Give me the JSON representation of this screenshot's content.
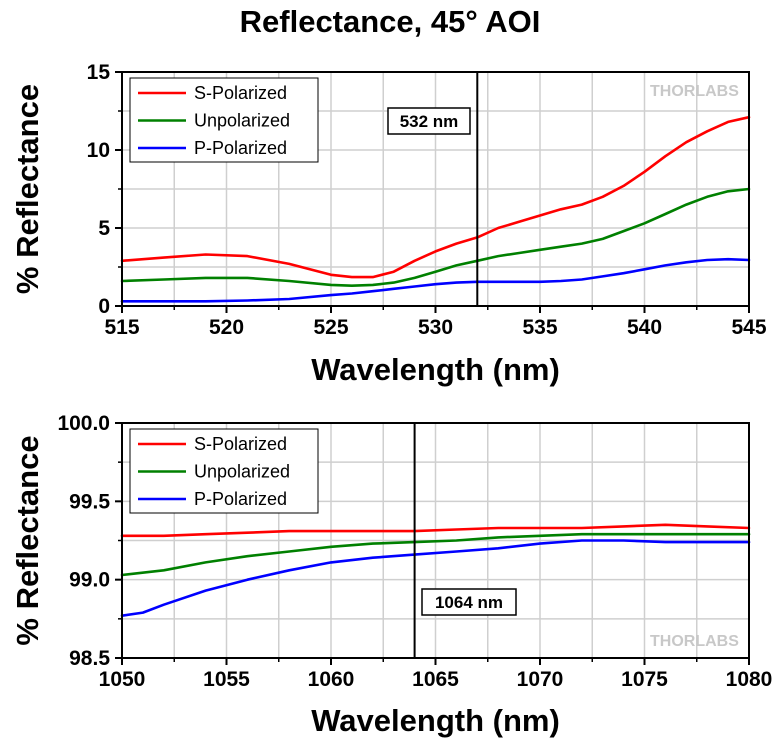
{
  "title": "Reflectance, 45° AOI",
  "watermark": "THORLABS",
  "chart_data": [
    {
      "type": "line",
      "xlabel": "Wavelength (nm)",
      "ylabel": "% Reflectance",
      "xlim": [
        515,
        545
      ],
      "ylim": [
        0,
        15
      ],
      "xticks": [
        515,
        520,
        525,
        530,
        535,
        540,
        545
      ],
      "yticks": [
        0,
        5,
        10,
        15
      ],
      "ytick_labels": [
        "0",
        "5",
        "10",
        "15"
      ],
      "grid": true,
      "legend_position": "top-left",
      "marker_line": {
        "x": 532,
        "label": "532 nm"
      },
      "series": [
        {
          "name": "S-Polarized",
          "color": "#ff0000",
          "x": [
            515,
            517,
            519,
            521,
            523,
            525,
            526,
            527,
            528,
            529,
            530,
            531,
            532,
            533,
            534,
            535,
            536,
            537,
            538,
            539,
            540,
            541,
            542,
            543,
            544,
            545
          ],
          "y": [
            2.9,
            3.1,
            3.3,
            3.2,
            2.7,
            2.0,
            1.85,
            1.85,
            2.2,
            2.9,
            3.5,
            4.0,
            4.4,
            5.0,
            5.4,
            5.8,
            6.2,
            6.5,
            7.0,
            7.7,
            8.6,
            9.6,
            10.5,
            11.2,
            11.8,
            12.1
          ]
        },
        {
          "name": "Unpolarized",
          "color": "#008000",
          "x": [
            515,
            517,
            519,
            521,
            523,
            525,
            526,
            527,
            528,
            529,
            530,
            531,
            532,
            533,
            534,
            535,
            536,
            537,
            538,
            539,
            540,
            541,
            542,
            543,
            544,
            545
          ],
          "y": [
            1.6,
            1.7,
            1.8,
            1.8,
            1.6,
            1.35,
            1.3,
            1.35,
            1.5,
            1.8,
            2.2,
            2.6,
            2.9,
            3.2,
            3.4,
            3.6,
            3.8,
            4.0,
            4.3,
            4.8,
            5.3,
            5.9,
            6.5,
            7.0,
            7.35,
            7.5
          ]
        },
        {
          "name": "P-Polarized",
          "color": "#0000ff",
          "x": [
            515,
            517,
            519,
            521,
            523,
            525,
            526,
            527,
            528,
            529,
            530,
            531,
            532,
            533,
            534,
            535,
            536,
            537,
            538,
            539,
            540,
            541,
            542,
            543,
            544,
            545
          ],
          "y": [
            0.3,
            0.3,
            0.3,
            0.35,
            0.45,
            0.7,
            0.8,
            0.95,
            1.1,
            1.25,
            1.4,
            1.5,
            1.55,
            1.55,
            1.55,
            1.55,
            1.6,
            1.7,
            1.9,
            2.1,
            2.35,
            2.6,
            2.8,
            2.95,
            3.0,
            2.95
          ]
        }
      ]
    },
    {
      "type": "line",
      "xlabel": "Wavelength (nm)",
      "ylabel": "% Reflectance",
      "xlim": [
        1050,
        1080
      ],
      "ylim": [
        98.5,
        100.0
      ],
      "xticks": [
        1050,
        1055,
        1060,
        1065,
        1070,
        1075,
        1080
      ],
      "yticks": [
        98.5,
        99.0,
        99.5,
        100.0
      ],
      "ytick_labels": [
        "98.5",
        "99.0",
        "99.5",
        "100.0"
      ],
      "grid": true,
      "legend_position": "top-left",
      "marker_line": {
        "x": 1064,
        "label": "1064 nm"
      },
      "series": [
        {
          "name": "S-Polarized",
          "color": "#ff0000",
          "x": [
            1050,
            1052,
            1054,
            1056,
            1058,
            1060,
            1062,
            1064,
            1066,
            1068,
            1070,
            1072,
            1074,
            1076,
            1078,
            1080
          ],
          "y": [
            99.28,
            99.28,
            99.29,
            99.3,
            99.31,
            99.31,
            99.31,
            99.31,
            99.32,
            99.33,
            99.33,
            99.33,
            99.34,
            99.35,
            99.34,
            99.33
          ]
        },
        {
          "name": "Unpolarized",
          "color": "#008000",
          "x": [
            1050,
            1052,
            1054,
            1056,
            1058,
            1060,
            1062,
            1064,
            1066,
            1068,
            1070,
            1072,
            1074,
            1076,
            1078,
            1080
          ],
          "y": [
            99.03,
            99.06,
            99.11,
            99.15,
            99.18,
            99.21,
            99.23,
            99.24,
            99.25,
            99.27,
            99.28,
            99.29,
            99.29,
            99.29,
            99.29,
            99.29
          ]
        },
        {
          "name": "P-Polarized",
          "color": "#0000ff",
          "x": [
            1050,
            1051,
            1052,
            1054,
            1056,
            1058,
            1060,
            1062,
            1064,
            1066,
            1068,
            1070,
            1072,
            1074,
            1076,
            1078,
            1080
          ],
          "y": [
            98.77,
            98.79,
            98.84,
            98.93,
            99.0,
            99.06,
            99.11,
            99.14,
            99.16,
            99.18,
            99.2,
            99.23,
            99.25,
            99.25,
            99.24,
            99.24,
            99.24
          ]
        }
      ]
    }
  ]
}
